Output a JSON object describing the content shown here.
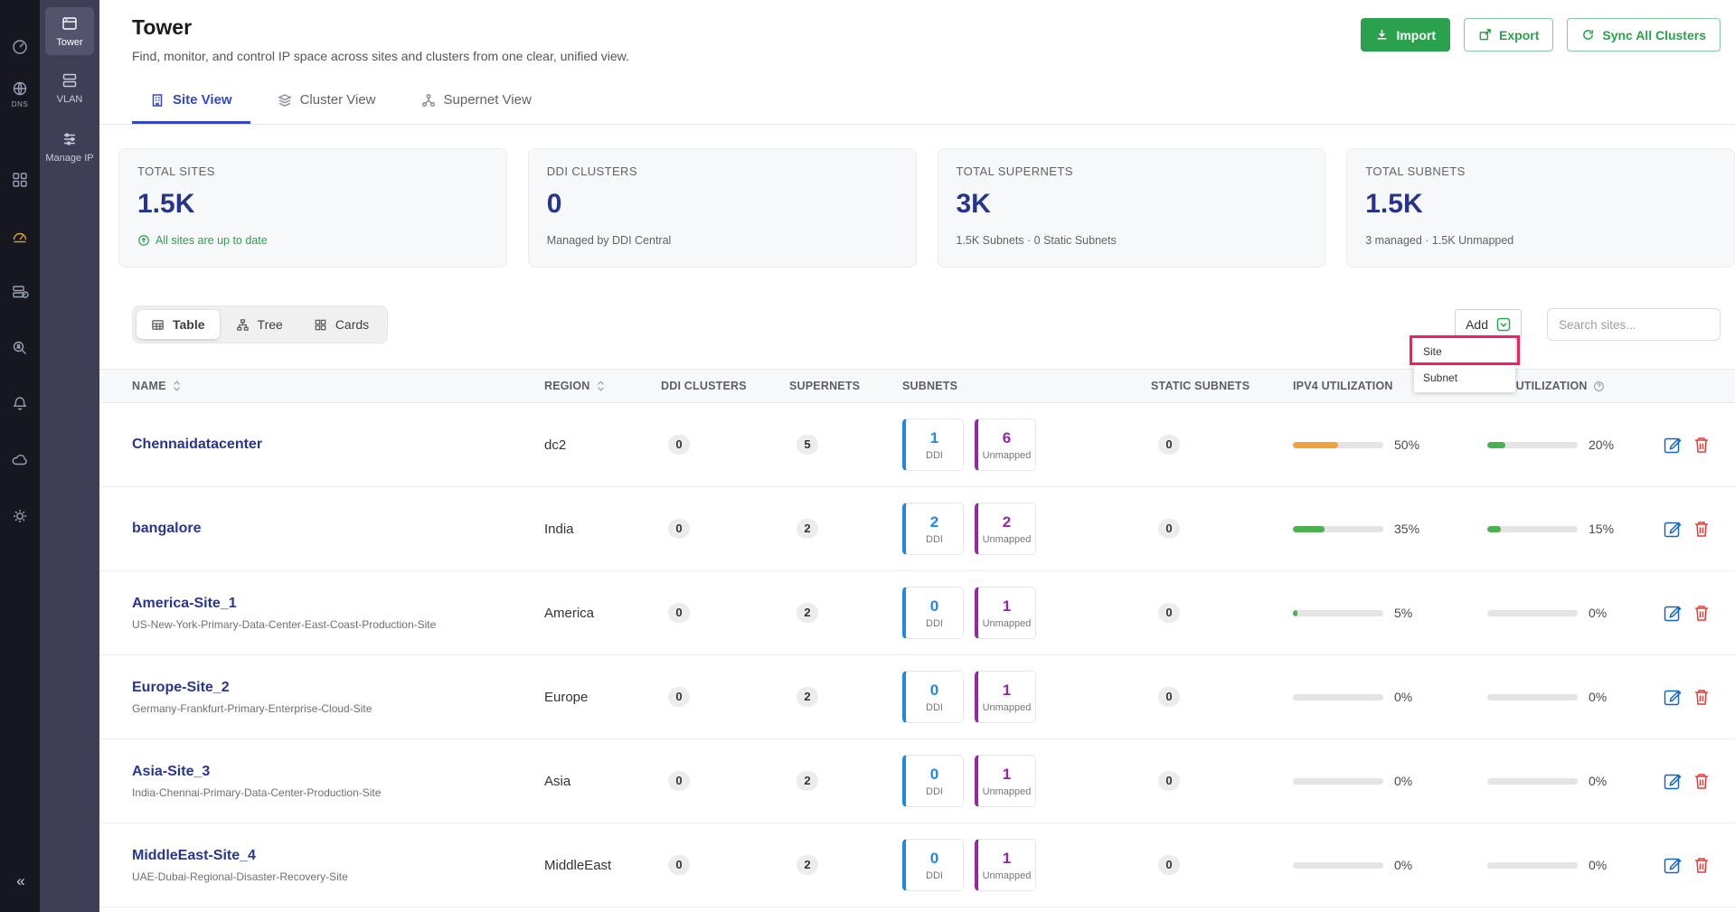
{
  "colors": {
    "accent_green": "#2aa14c",
    "active_blue": "#3448c5",
    "navy": "#27348b",
    "annotation_red": "#f2205f"
  },
  "rail": {
    "dns_label": "DNS",
    "collapse_glyph": "«"
  },
  "sidebar": {
    "items": [
      {
        "label": "Tower"
      },
      {
        "label": "VLAN"
      },
      {
        "label": "Manage IP"
      }
    ]
  },
  "header": {
    "title": "Tower",
    "subtitle": "Find, monitor, and control IP space across sites and clusters from one clear, unified view.",
    "import_label": "Import",
    "export_label": "Export",
    "sync_label": "Sync All Clusters"
  },
  "tabs": [
    {
      "label": "Site View"
    },
    {
      "label": "Cluster View"
    },
    {
      "label": "Supernet View"
    }
  ],
  "active_tab": "Site View",
  "stats": [
    {
      "label": "TOTAL SITES",
      "value": "1.5K",
      "sub": "All sites are up to date"
    },
    {
      "label": "DDI CLUSTERS",
      "value": "0",
      "sub": "Managed by DDI Central"
    },
    {
      "label": "TOTAL SUPERNETS",
      "value": "3K",
      "sub": "1.5K Subnets · 0 Static Subnets"
    },
    {
      "label": "TOTAL SUBNETS",
      "value": "1.5K",
      "sub": "3 managed · 1.5K Unmapped"
    }
  ],
  "toolbar": {
    "views": [
      {
        "label": "Table"
      },
      {
        "label": "Tree"
      },
      {
        "label": "Cards"
      }
    ],
    "active_view": "Table",
    "add_label": "Add",
    "search_placeholder": "Search sites..."
  },
  "add_menu": {
    "items": [
      {
        "label": "Site",
        "annotated": true
      },
      {
        "label": "Subnet"
      }
    ]
  },
  "table": {
    "headers": {
      "name": "NAME",
      "region": "REGION",
      "ddi_clusters": "DDI CLUSTERS",
      "supernets": "SUPERNETS",
      "subnets": "SUBNETS",
      "static_subnets": "STATIC SUBNETS",
      "ipv4": "IPV4 UTILIZATION",
      "ipv6": "IPV6 UTILIZATION"
    },
    "subnet_labels": {
      "ddi": "DDI",
      "unmapped": "Unmapped"
    },
    "rows": [
      {
        "name": "Chennaidatacenter",
        "description": "",
        "region": "dc2",
        "ddi_clusters": "0",
        "supernets": "5",
        "subnets_ddi": "1",
        "subnets_unmapped": "6",
        "static_subnets": "0",
        "ipv4_pct": 50,
        "ipv4_label": "50%",
        "ipv4_color": "#f0a23c",
        "ipv6_pct": 20,
        "ipv6_label": "20%",
        "ipv6_color": "#4caf50"
      },
      {
        "name": "bangalore",
        "description": "",
        "region": "India",
        "ddi_clusters": "0",
        "supernets": "2",
        "subnets_ddi": "2",
        "subnets_unmapped": "2",
        "static_subnets": "0",
        "ipv4_pct": 35,
        "ipv4_label": "35%",
        "ipv4_color": "#4caf50",
        "ipv6_pct": 15,
        "ipv6_label": "15%",
        "ipv6_color": "#4caf50"
      },
      {
        "name": "America-Site_1",
        "description": "US-New-York-Primary-Data-Center-East-Coast-Production-Site",
        "region": "America",
        "ddi_clusters": "0",
        "supernets": "2",
        "subnets_ddi": "0",
        "subnets_unmapped": "1",
        "static_subnets": "0",
        "ipv4_pct": 5,
        "ipv4_label": "5%",
        "ipv4_color": "#4caf50",
        "ipv6_pct": 0,
        "ipv6_label": "0%",
        "ipv6_color": "#4caf50"
      },
      {
        "name": "Europe-Site_2",
        "description": "Germany-Frankfurt-Primary-Enterprise-Cloud-Site",
        "region": "Europe",
        "ddi_clusters": "0",
        "supernets": "2",
        "subnets_ddi": "0",
        "subnets_unmapped": "1",
        "static_subnets": "0",
        "ipv4_pct": 0,
        "ipv4_label": "0%",
        "ipv4_color": "#4caf50",
        "ipv6_pct": 0,
        "ipv6_label": "0%",
        "ipv6_color": "#4caf50"
      },
      {
        "name": "Asia-Site_3",
        "description": "India-Chennai-Primary-Data-Center-Production-Site",
        "region": "Asia",
        "ddi_clusters": "0",
        "supernets": "2",
        "subnets_ddi": "0",
        "subnets_unmapped": "1",
        "static_subnets": "0",
        "ipv4_pct": 0,
        "ipv4_label": "0%",
        "ipv4_color": "#4caf50",
        "ipv6_pct": 0,
        "ipv6_label": "0%",
        "ipv6_color": "#4caf50"
      },
      {
        "name": "MiddleEast-Site_4",
        "description": "UAE-Dubai-Regional-Disaster-Recovery-Site",
        "region": "MiddleEast",
        "ddi_clusters": "0",
        "supernets": "2",
        "subnets_ddi": "0",
        "subnets_unmapped": "1",
        "static_subnets": "0",
        "ipv4_pct": 0,
        "ipv4_label": "0%",
        "ipv4_color": "#4caf50",
        "ipv6_pct": 0,
        "ipv6_label": "0%",
        "ipv6_color": "#4caf50"
      }
    ]
  }
}
